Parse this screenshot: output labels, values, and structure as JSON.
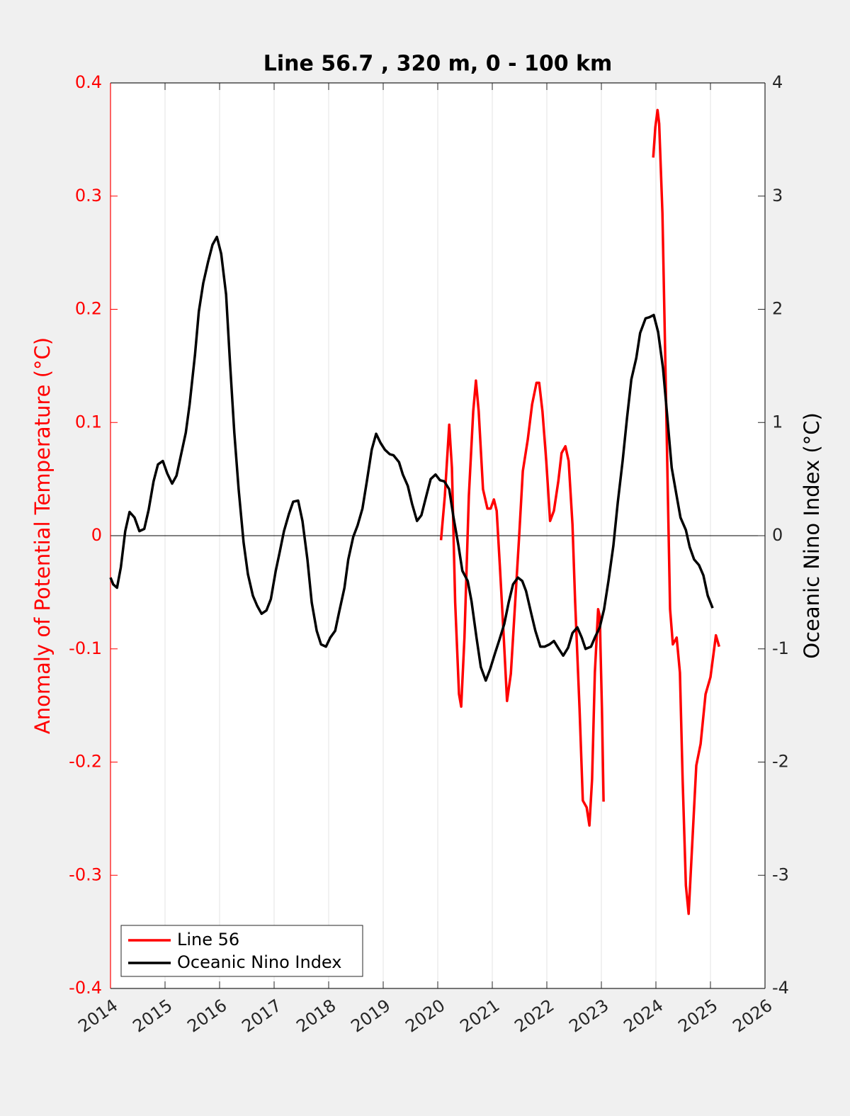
{
  "chart_data": {
    "type": "line",
    "title": "Line 56.7 , 320 m, 0 - 100 km",
    "ylabel": "Anomaly of Potential Temperature (°C)",
    "y2label": "Oceanic Nino Index (°C)",
    "xlim": [
      2014,
      2026
    ],
    "xticks": [
      2014,
      2015,
      2016,
      2017,
      2018,
      2019,
      2020,
      2021,
      2022,
      2023,
      2024,
      2025,
      2026
    ],
    "ylim": [
      -0.4,
      0.4
    ],
    "yticks": [
      -0.4,
      -0.3,
      -0.2,
      -0.1,
      0,
      0.1,
      0.2,
      0.3,
      0.4
    ],
    "y2lim": [
      -4,
      4
    ],
    "y2ticks": [
      -4,
      -3,
      -2,
      -1,
      0,
      1,
      2,
      3,
      4
    ],
    "ylabel_color": "#ff0000",
    "grid": true,
    "legend": "lower left",
    "series": [
      {
        "name": "Line 56",
        "color": "#ff0000",
        "x": [
          2020.06,
          2020.13,
          2020.21,
          2020.26,
          2020.32,
          2020.39,
          2020.43,
          2020.49,
          2020.57,
          2020.65,
          2020.7,
          2020.75,
          2020.83,
          2020.91,
          2020.97,
          2021.03,
          2021.08,
          2021.14,
          2021.21,
          2021.27,
          2021.34,
          2021.42,
          2021.49,
          2021.56,
          2021.65,
          2021.73,
          2021.81,
          2021.86,
          2021.92,
          2021.99,
          2022.06,
          2022.13,
          2022.21,
          2022.27,
          2022.34,
          2022.4,
          2022.47,
          2022.52,
          2022.6,
          2022.66,
          2022.73,
          2022.78,
          2022.83,
          2022.88,
          2022.94,
          2022.97,
          2023.01,
          2023.04,
          null,
          2023.95,
          2023.99,
          2024.03,
          2024.06,
          2024.12,
          2024.17,
          2024.22,
          2024.26,
          2024.31,
          2024.38,
          2024.44,
          2024.49,
          2024.55,
          2024.6,
          2024.66,
          2024.74,
          2024.82,
          2024.91,
          2025.0,
          2025.06,
          2025.1,
          2025.16
        ],
        "values": [
          -0.004,
          0.035,
          0.098,
          0.06,
          -0.059,
          -0.14,
          -0.151,
          -0.09,
          0.035,
          0.11,
          0.137,
          0.11,
          0.041,
          0.024,
          0.024,
          0.032,
          0.022,
          -0.028,
          -0.09,
          -0.146,
          -0.122,
          -0.059,
          -0.003,
          0.057,
          0.085,
          0.116,
          0.135,
          0.135,
          0.11,
          0.066,
          0.013,
          0.022,
          0.048,
          0.073,
          0.079,
          0.066,
          0.01,
          -0.059,
          -0.153,
          -0.234,
          -0.24,
          -0.256,
          -0.215,
          -0.121,
          -0.065,
          -0.071,
          -0.153,
          -0.235,
          null,
          0.334,
          0.361,
          0.376,
          0.364,
          0.285,
          0.16,
          0.035,
          -0.065,
          -0.096,
          -0.09,
          -0.121,
          -0.215,
          -0.309,
          -0.334,
          -0.278,
          -0.203,
          -0.184,
          -0.14,
          -0.125,
          -0.103,
          -0.088,
          -0.098
        ]
      },
      {
        "name": "Oceanic Nino Index",
        "color": "#000000",
        "axis": "y2",
        "x": [
          2014.0,
          2014.05,
          2014.12,
          2014.19,
          2014.27,
          2014.35,
          2014.44,
          2014.53,
          2014.62,
          2014.7,
          2014.79,
          2014.87,
          2014.96,
          2015.04,
          2015.13,
          2015.21,
          2015.3,
          2015.38,
          2015.45,
          2015.55,
          2015.62,
          2015.7,
          2015.79,
          2015.87,
          2015.95,
          2016.03,
          2016.12,
          2016.19,
          2016.27,
          2016.35,
          2016.44,
          2016.52,
          2016.61,
          2016.69,
          2016.77,
          2016.86,
          2016.94,
          2017.03,
          2017.1,
          2017.18,
          2017.27,
          2017.35,
          2017.44,
          2017.52,
          2017.61,
          2017.69,
          2017.78,
          2017.86,
          2017.95,
          2018.03,
          2018.12,
          2018.19,
          2018.29,
          2018.36,
          2018.45,
          2018.53,
          2018.62,
          2018.7,
          2018.79,
          2018.87,
          2018.95,
          2019.03,
          2019.12,
          2019.19,
          2019.29,
          2019.36,
          2019.45,
          2019.53,
          2019.62,
          2019.7,
          2019.79,
          2019.87,
          2019.96,
          2020.04,
          2020.12,
          2020.21,
          2020.29,
          2020.38,
          2020.45,
          2020.55,
          2020.62,
          2020.71,
          2020.79,
          2020.88,
          2020.96,
          2021.05,
          2021.13,
          2021.22,
          2021.3,
          2021.38,
          2021.47,
          2021.55,
          2021.62,
          2021.71,
          2021.79,
          2021.88,
          2021.96,
          2022.05,
          2022.13,
          2022.22,
          2022.3,
          2022.39,
          2022.47,
          2022.56,
          2022.64,
          2022.71,
          2022.81,
          2022.88,
          2022.97,
          2023.05,
          2023.13,
          2023.22,
          2023.3,
          2023.39,
          2023.47,
          2023.55,
          2023.64,
          2023.71,
          2023.81,
          2023.88,
          2023.96,
          2024.04,
          2024.13,
          2024.21,
          2024.29,
          2024.38,
          2024.45,
          2024.55,
          2024.62,
          2024.7,
          2024.79,
          2024.87,
          2024.95,
          2025.04
        ],
        "values": [
          -0.37,
          -0.43,
          -0.46,
          -0.28,
          0.04,
          0.21,
          0.16,
          0.04,
          0.06,
          0.23,
          0.48,
          0.63,
          0.66,
          0.55,
          0.46,
          0.53,
          0.73,
          0.91,
          1.16,
          1.6,
          1.98,
          2.23,
          2.42,
          2.57,
          2.64,
          2.49,
          2.13,
          1.54,
          0.91,
          0.41,
          -0.06,
          -0.34,
          -0.53,
          -0.62,
          -0.69,
          -0.66,
          -0.56,
          -0.31,
          -0.15,
          0.04,
          0.19,
          0.3,
          0.31,
          0.13,
          -0.21,
          -0.59,
          -0.84,
          -0.96,
          -0.98,
          -0.9,
          -0.84,
          -0.68,
          -0.46,
          -0.21,
          -0.01,
          0.09,
          0.24,
          0.48,
          0.76,
          0.9,
          0.82,
          0.76,
          0.72,
          0.71,
          0.65,
          0.54,
          0.44,
          0.28,
          0.13,
          0.18,
          0.35,
          0.5,
          0.54,
          0.49,
          0.48,
          0.41,
          0.16,
          -0.09,
          -0.31,
          -0.4,
          -0.58,
          -0.9,
          -1.16,
          -1.28,
          -1.18,
          -1.04,
          -0.92,
          -0.78,
          -0.59,
          -0.43,
          -0.37,
          -0.4,
          -0.49,
          -0.68,
          -0.84,
          -0.98,
          -0.98,
          -0.96,
          -0.93,
          -1.0,
          -1.06,
          -0.99,
          -0.86,
          -0.81,
          -0.9,
          -1.0,
          -0.98,
          -0.9,
          -0.81,
          -0.65,
          -0.4,
          -0.09,
          0.29,
          0.66,
          1.04,
          1.38,
          1.57,
          1.79,
          1.92,
          1.93,
          1.95,
          1.8,
          1.48,
          1.04,
          0.6,
          0.35,
          0.16,
          0.05,
          -0.1,
          -0.21,
          -0.26,
          -0.35,
          -0.53,
          -0.64
        ]
      }
    ]
  }
}
